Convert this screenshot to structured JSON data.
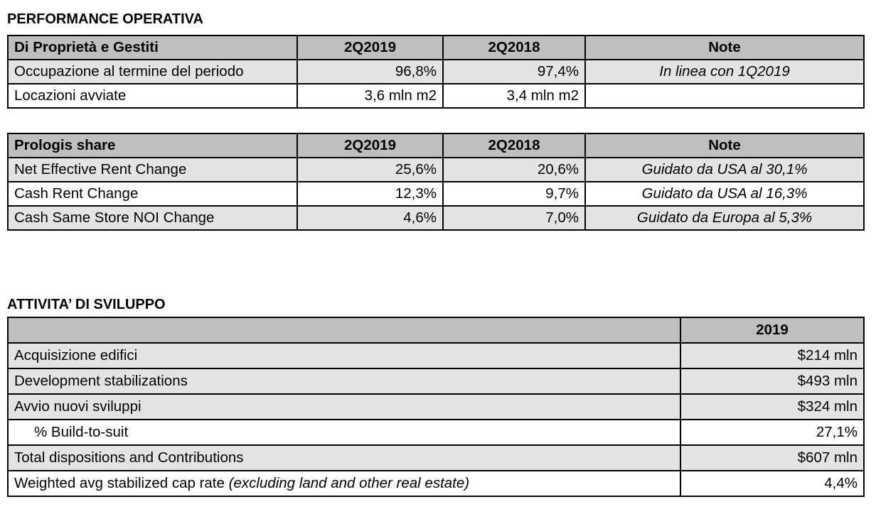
{
  "section1": {
    "title": "PERFORMANCE OPERATIVA"
  },
  "table1": {
    "headers": [
      "Di Proprietà e Gestiti",
      "2Q2019",
      "2Q2018",
      "Note"
    ],
    "rows": [
      [
        "Occupazione al termine del periodo",
        "96,8%",
        "97,4%",
        "In linea con 1Q2019"
      ],
      [
        "Locazioni avviate",
        "3,6 mln m2",
        "3,4 mln m2",
        ""
      ]
    ]
  },
  "table2": {
    "headers": [
      "Prologis share",
      "2Q2019",
      "2Q2018",
      "Note"
    ],
    "rows": [
      [
        "Net Effective Rent Change",
        "25,6%",
        "20,6%",
        "Guidato da USA al 30,1%"
      ],
      [
        "Cash Rent Change",
        "12,3%",
        "9,7%",
        "Guidato da USA al 16,3%"
      ],
      [
        "Cash Same Store NOI Change",
        "4,6%",
        "7,0%",
        "Guidato da Europa al 5,3%"
      ]
    ]
  },
  "section2": {
    "title": "ATTIVITA’ DI SVILUPPO"
  },
  "table3": {
    "headers": [
      "",
      "2019"
    ],
    "rows": [
      [
        "Acquisizione edifici",
        "$214 mln"
      ],
      [
        "Development stabilizations",
        "$493 mln"
      ],
      [
        "Avvio nuovi sviluppi",
        "$324 mln"
      ],
      [
        "% Build-to-suit",
        "27,1%"
      ],
      [
        "Total dispositions and Contributions",
        "$607 mln"
      ],
      [
        "Weighted avg stabilized cap rate",
        "4,4%"
      ]
    ],
    "last_row_note": "(excluding land and other real estate)"
  }
}
